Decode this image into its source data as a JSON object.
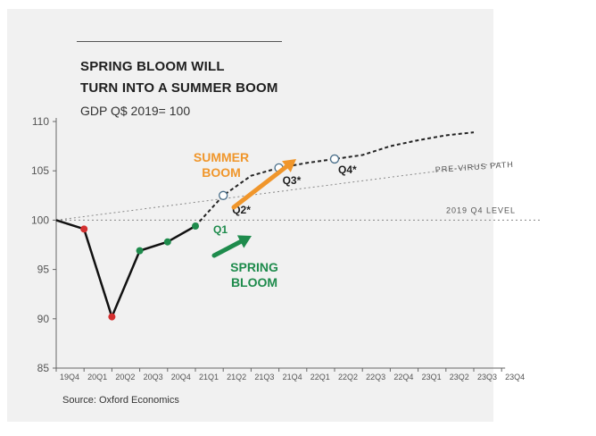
{
  "header": {
    "title_line1": "SPRING BLOOM WILL",
    "title_line2": "TURN INTO A SUMMER BOOM",
    "subtitle": "GDP Q$ 2019= 100"
  },
  "footer": {
    "source": "Source: Oxford Economics"
  },
  "colors": {
    "actual": "#111111",
    "red": "#d32f2f",
    "green": "#1e8b4c",
    "orange": "#f0962b",
    "forecast": "#222222",
    "reference": "#888888"
  },
  "chart_data": {
    "type": "line",
    "title": "SPRING BLOOM WILL TURN INTO A SUMMER BOOM",
    "subtitle": "GDP Q$ 2019= 100",
    "xlabel": "",
    "ylabel": "",
    "ylim": [
      85,
      110
    ],
    "yticks": [
      85,
      90,
      95,
      100,
      105,
      110
    ],
    "categories": [
      "19Q4",
      "20Q1",
      "20Q2",
      "20Q3",
      "20Q4",
      "21Q1",
      "21Q2",
      "21Q3",
      "21Q4",
      "22Q1",
      "22Q2",
      "22Q3",
      "22Q4",
      "23Q1",
      "23Q2",
      "23Q3",
      "23Q4"
    ],
    "grid": false,
    "legend": "none",
    "actual": {
      "x": [
        "19Q4",
        "20Q1",
        "20Q2",
        "20Q3",
        "20Q4",
        "21Q1"
      ],
      "y": [
        100,
        99.1,
        90.2,
        96.9,
        97.8,
        99.4
      ],
      "markers": [
        {
          "x": "20Q1",
          "y": 99.1,
          "color": "red"
        },
        {
          "x": "20Q2",
          "y": 90.2,
          "color": "red"
        },
        {
          "x": "20Q3",
          "y": 96.9,
          "color": "green"
        },
        {
          "x": "20Q4",
          "y": 97.8,
          "color": "green"
        },
        {
          "x": "21Q1",
          "y": 99.4,
          "color": "green"
        }
      ]
    },
    "forecast": {
      "x": [
        "21Q1",
        "21Q2",
        "21Q3",
        "21Q4",
        "22Q1",
        "22Q2",
        "22Q3",
        "22Q4",
        "23Q1",
        "23Q2",
        "23Q3"
      ],
      "y": [
        99.4,
        102.5,
        104.5,
        105.3,
        105.8,
        106.2,
        106.6,
        107.5,
        108.1,
        108.6,
        108.9
      ],
      "markers": [
        {
          "x": "21Q2",
          "y": 102.5,
          "label": "Q2*"
        },
        {
          "x": "21Q4",
          "y": 105.3,
          "label": "Q3*"
        },
        {
          "x": "22Q2",
          "y": 106.2,
          "label": "Q4*"
        }
      ]
    },
    "pre_virus_path": {
      "label": "PRE-VIRUS PATH",
      "from": {
        "x": "19Q4",
        "y": 100
      },
      "to": {
        "x": "23Q4",
        "y": 105.8
      }
    },
    "level_2019q4": {
      "label": "2019 Q4 LEVEL",
      "y": 100
    },
    "annotations": {
      "q1": "Q1",
      "summer_boom_line1": "SUMMER",
      "summer_boom_line2": "BOOM",
      "spring_bloom_line1": "SPRING",
      "spring_bloom_line2": "BLOOM"
    }
  }
}
